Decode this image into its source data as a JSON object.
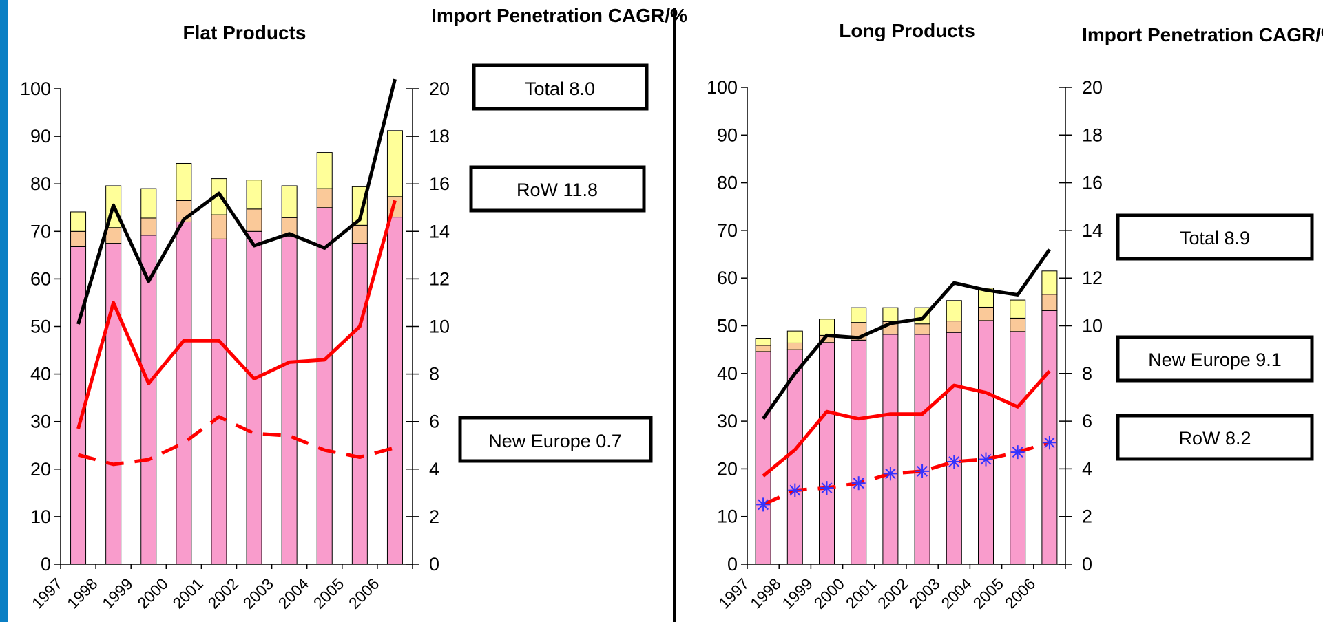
{
  "colors": {
    "bar_base": "#f99ccc",
    "bar_mid": "#fac999",
    "bar_top": "#ffff99",
    "total_line": "#000000",
    "new_europe_line": "#ff0000",
    "row_line": "#ff0000",
    "row_marker": "#3333ff",
    "accent_strip": "#0a7fc4"
  },
  "chart_data": [
    {
      "type": "bar",
      "title": "Flat Products",
      "right_axis_title": "Import Penetration CAGR/%",
      "categories": [
        "1997",
        "1998",
        "1999",
        "2000",
        "2001",
        "2002",
        "2003",
        "2004",
        "2005",
        "2006"
      ],
      "ylim": [
        0,
        100
      ],
      "y2lim": [
        0,
        20
      ],
      "y_ticks": [
        "0",
        "10",
        "20",
        "30",
        "40",
        "50",
        "60",
        "70",
        "80",
        "90",
        "100"
      ],
      "y2_ticks": [
        "0",
        "2",
        "4",
        "6",
        "8",
        "10",
        "12",
        "14",
        "16",
        "18",
        "20"
      ],
      "stacked_bars": [
        {
          "values": [
            66.8,
            67.5,
            69.2,
            72.0,
            68.4,
            70.0,
            69.0,
            75.0,
            67.5,
            73.0
          ]
        },
        {
          "values": [
            3.2,
            3.3,
            3.6,
            4.5,
            5.1,
            4.7,
            3.9,
            4.0,
            3.8,
            4.3
          ]
        },
        {
          "values": [
            4.1,
            8.8,
            6.2,
            7.8,
            7.6,
            6.1,
            6.7,
            7.6,
            8.1,
            13.9
          ]
        }
      ],
      "lines_y2": [
        {
          "key": "total",
          "style": "solid-black",
          "values": [
            10.1,
            15.1,
            11.9,
            14.5,
            15.6,
            13.4,
            13.9,
            13.3,
            14.5,
            20.4
          ]
        },
        {
          "key": "new_europe",
          "style": "solid-red",
          "values": [
            5.7,
            11.0,
            7.6,
            9.4,
            9.4,
            7.8,
            8.5,
            8.6,
            10.0,
            15.3
          ]
        },
        {
          "key": "row",
          "style": "dashed-red",
          "values": [
            4.6,
            4.2,
            4.4,
            5.1,
            6.2,
            5.5,
            5.4,
            4.8,
            4.5,
            4.9
          ]
        }
      ],
      "labels": {
        "total": "Total 8.0",
        "row": "RoW 11.8",
        "new_europe": "New Europe 0.7"
      }
    },
    {
      "type": "bar",
      "title": "Long Products",
      "right_axis_title": "Import Penetration CAGR/%",
      "categories": [
        "1997",
        "1998",
        "1999",
        "2000",
        "2001",
        "2002",
        "2003",
        "2004",
        "2005",
        "2006"
      ],
      "ylim": [
        0,
        100
      ],
      "y2lim": [
        0,
        20
      ],
      "y_ticks": [
        "0",
        "10",
        "20",
        "30",
        "40",
        "50",
        "60",
        "70",
        "80",
        "90",
        "100"
      ],
      "y2_ticks": [
        "0",
        "2",
        "4",
        "6",
        "8",
        "10",
        "12",
        "14",
        "16",
        "18",
        "20"
      ],
      "stacked_bars": [
        {
          "values": [
            44.6,
            45.0,
            46.5,
            47.0,
            48.2,
            48.2,
            48.6,
            51.1,
            48.8,
            53.2
          ]
        },
        {
          "values": [
            1.3,
            1.4,
            1.5,
            3.7,
            2.7,
            2.2,
            2.4,
            2.8,
            2.8,
            3.4
          ]
        },
        {
          "values": [
            1.5,
            2.5,
            3.4,
            3.1,
            2.9,
            3.4,
            4.3,
            4.0,
            3.8,
            4.9
          ]
        }
      ],
      "lines_y2": [
        {
          "key": "total",
          "style": "solid-black",
          "values": [
            6.1,
            8.0,
            9.6,
            9.5,
            10.1,
            10.3,
            11.8,
            11.5,
            11.3,
            13.2
          ]
        },
        {
          "key": "new_europe",
          "style": "solid-red",
          "values": [
            3.7,
            4.8,
            6.4,
            6.1,
            6.3,
            6.3,
            7.5,
            7.2,
            6.6,
            8.1
          ]
        },
        {
          "key": "row",
          "style": "dashed-red-star",
          "values": [
            2.5,
            3.1,
            3.2,
            3.4,
            3.8,
            3.9,
            4.3,
            4.4,
            4.7,
            5.1
          ]
        }
      ],
      "labels": {
        "total": "Total 8.9",
        "new_europe": "New Europe 9.1",
        "row": "RoW 8.2"
      }
    }
  ]
}
